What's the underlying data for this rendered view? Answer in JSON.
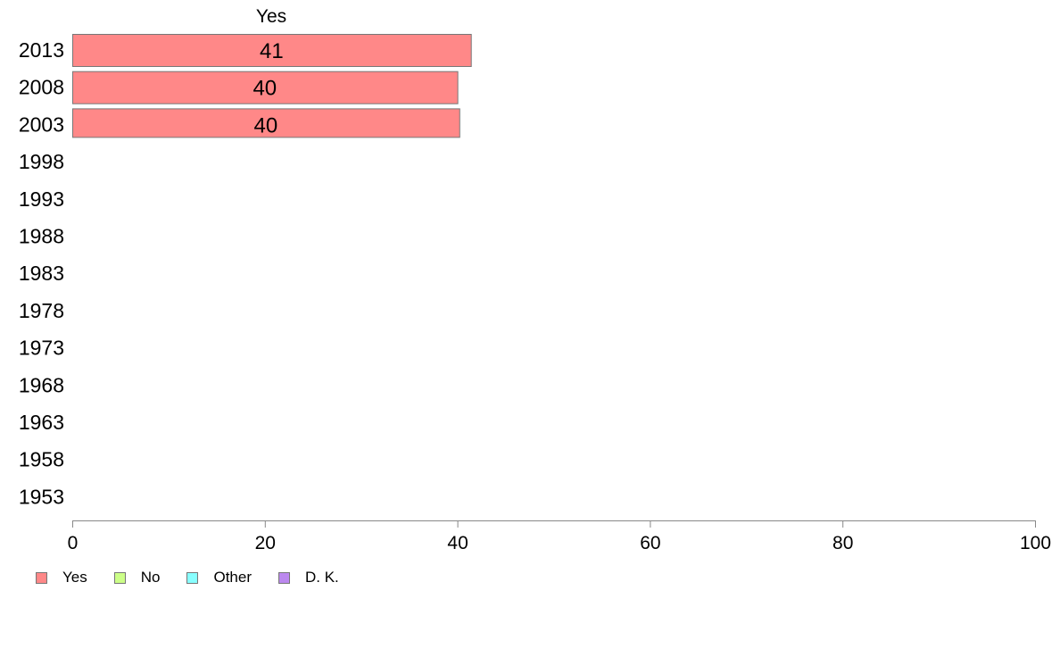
{
  "chart_data": {
    "type": "bar",
    "orientation": "horizontal",
    "series_header": "Yes",
    "categories": [
      "2013",
      "2008",
      "2003",
      "1998",
      "1993",
      "1988",
      "1983",
      "1978",
      "1973",
      "1968",
      "1963",
      "1958",
      "1953"
    ],
    "series": [
      {
        "name": "Yes",
        "color": "#ff8888",
        "values": [
          41.4,
          40,
          40.2,
          null,
          null,
          null,
          null,
          null,
          null,
          null,
          null,
          null,
          null
        ]
      }
    ],
    "data_labels": [
      "41",
      "40",
      "40",
      "",
      "",
      "",
      "",
      "",
      "",
      "",
      "",
      "",
      ""
    ],
    "xlim": [
      0,
      100
    ],
    "xticks": [
      "0",
      "20",
      "40",
      "60",
      "80",
      "100"
    ],
    "legend": [
      {
        "name": "Yes",
        "color": "#ff8888"
      },
      {
        "name": "No",
        "color": "#ccff88"
      },
      {
        "name": "Other",
        "color": "#88ffff"
      },
      {
        "name": "D. K.",
        "color": "#bb88ee"
      }
    ],
    "legend_position": "bottom-left",
    "grid": false
  }
}
